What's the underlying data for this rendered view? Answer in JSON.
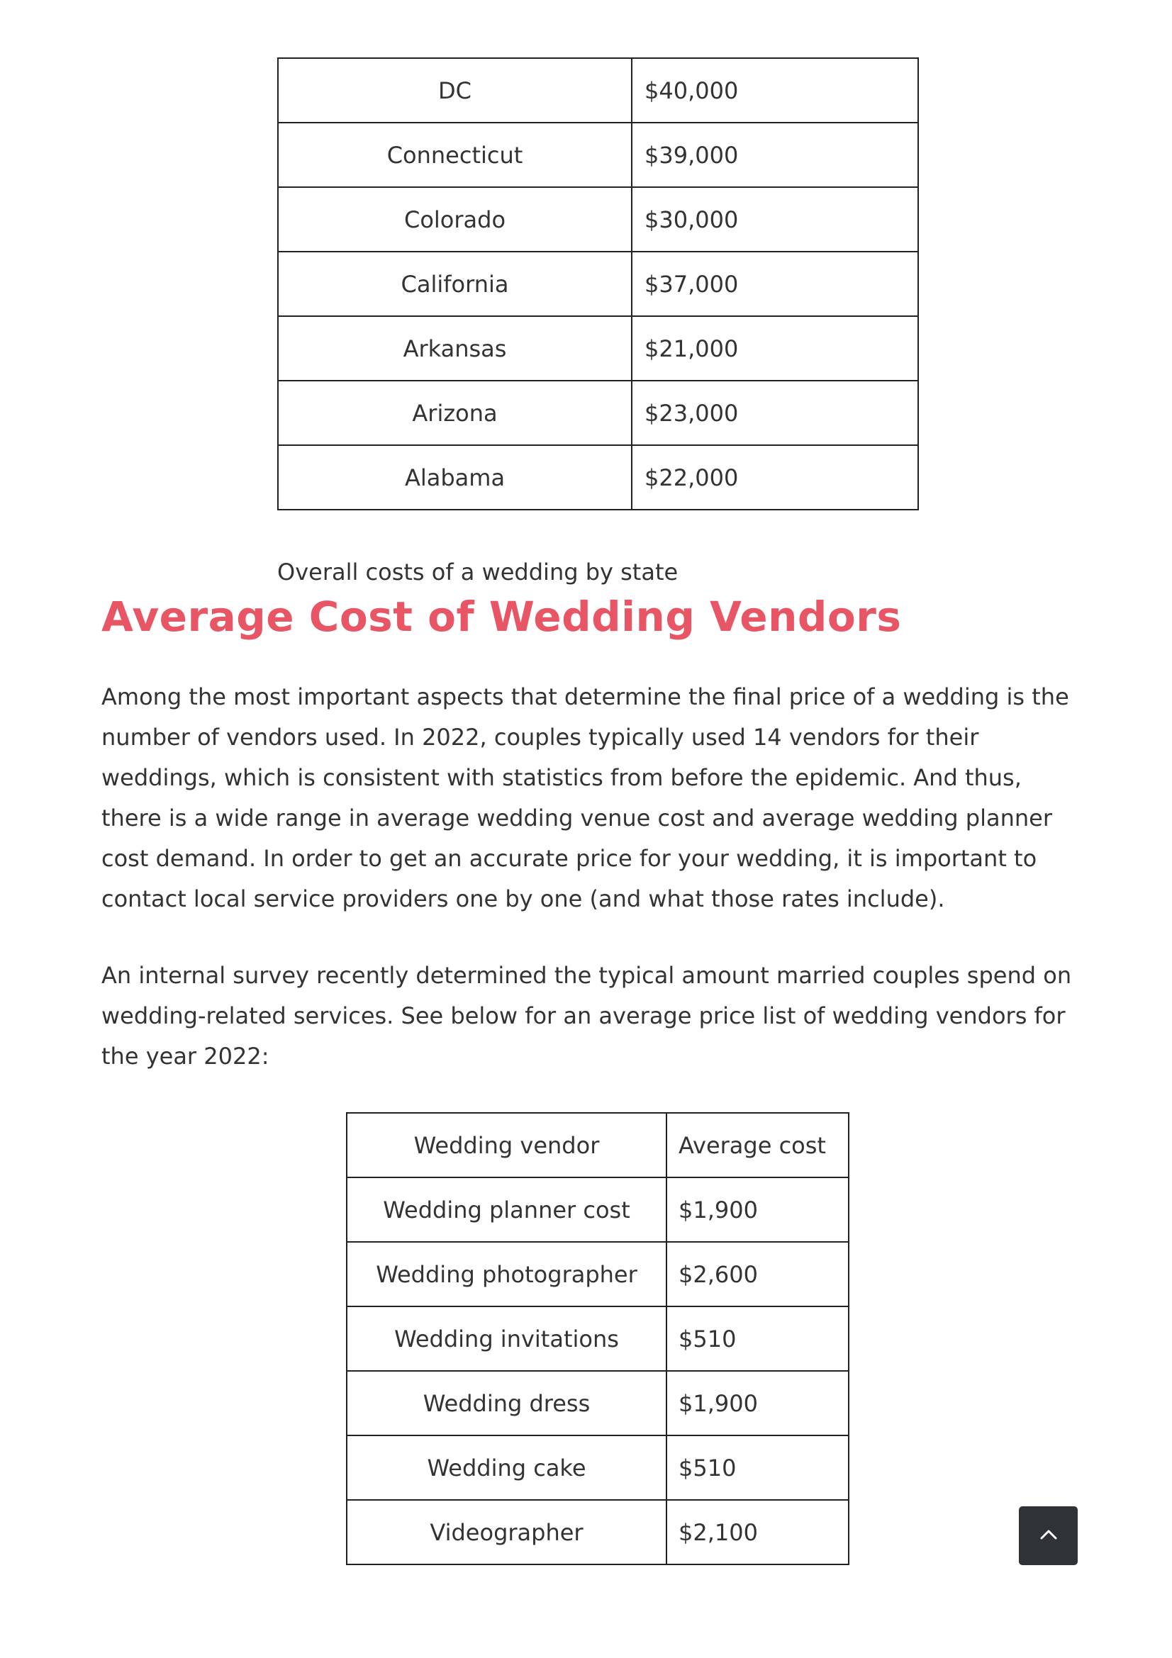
{
  "state_table": {
    "rows": [
      {
        "state": "DC",
        "cost": "$40,000"
      },
      {
        "state": "Connecticut",
        "cost": "$39,000"
      },
      {
        "state": "Colorado",
        "cost": "$30,000"
      },
      {
        "state": "California",
        "cost": "$37,000"
      },
      {
        "state": "Arkansas",
        "cost": "$21,000"
      },
      {
        "state": "Arizona",
        "cost": "$23,000"
      },
      {
        "state": "Alabama",
        "cost": "$22,000"
      }
    ],
    "caption": "Overall costs of a wedding by state"
  },
  "section": {
    "heading": "Average Cost of Wedding Vendors",
    "heading_color": "#e85565",
    "paragraphs": [
      "Among the most important aspects that determine the final price of a wedding is the number of vendors used. In 2022, couples typically used 14 vendors for their weddings, which is consistent with statistics from before the epidemic. And thus, there is a wide range in average wedding venue cost and average wedding planner cost demand. In order to get an accurate price for your wedding, it is important to contact local service providers one by one (and what those rates include).",
      "An internal survey recently determined the typical amount married couples spend on wedding-related services. See below for an average price list of wedding vendors for the year 2022:"
    ]
  },
  "vendor_table": {
    "headers": {
      "vendor": "Wedding vendor",
      "cost": "Average cost"
    },
    "rows": [
      {
        "vendor": "Wedding planner cost",
        "cost": "$1,900"
      },
      {
        "vendor": "Wedding photographer",
        "cost": "$2,600"
      },
      {
        "vendor": "Wedding invitations",
        "cost": "$510"
      },
      {
        "vendor": "Wedding dress",
        "cost": "$1,900"
      },
      {
        "vendor": "Wedding cake",
        "cost": "$510"
      },
      {
        "vendor": "Videographer",
        "cost": "$2,100"
      }
    ]
  },
  "scroll_top_button": {
    "icon": "chevron-up-icon",
    "background": "#2f3236"
  }
}
